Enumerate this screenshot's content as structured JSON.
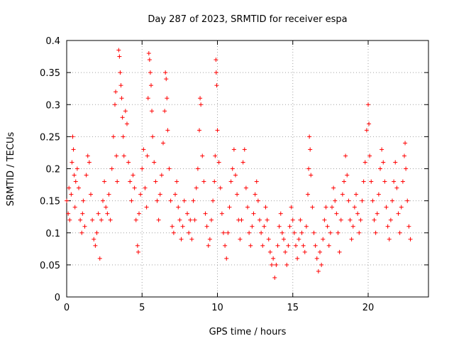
{
  "chart_data": {
    "type": "scatter",
    "title": "Day 287 of 2023, SRMTID for receiver espa",
    "xlabel": "GPS time / hours",
    "ylabel": "SRMTID / TECUs",
    "xlim": [
      0,
      24
    ],
    "ylim": [
      0,
      0.4
    ],
    "x_ticks": [
      0,
      5,
      10,
      15,
      20
    ],
    "x_tick_labels": [
      "0",
      "5",
      "10",
      "15",
      "20"
    ],
    "y_ticks": [
      0,
      0.05,
      0.1,
      0.15,
      0.2,
      0.25,
      0.3,
      0.35,
      0.4
    ],
    "y_tick_labels": [
      "0",
      "0.05",
      "0.1",
      "0.15",
      "0.2",
      "0.25",
      "0.3",
      "0.35",
      "0.4"
    ],
    "grid": true,
    "marker": "+",
    "series_color": "#ff0000",
    "series": [
      {
        "name": "SRMTID",
        "points": [
          [
            0.0,
            0.15
          ],
          [
            0.1,
            0.13
          ],
          [
            0.15,
            0.17
          ],
          [
            0.2,
            0.12
          ],
          [
            0.3,
            0.16
          ],
          [
            0.35,
            0.21
          ],
          [
            0.4,
            0.25
          ],
          [
            0.45,
            0.23
          ],
          [
            0.5,
            0.19
          ],
          [
            0.55,
            0.14
          ],
          [
            0.6,
            0.18
          ],
          [
            0.7,
            0.2
          ],
          [
            0.8,
            0.17
          ],
          [
            0.9,
            0.12
          ],
          [
            1.0,
            0.1
          ],
          [
            1.05,
            0.13
          ],
          [
            1.1,
            0.15
          ],
          [
            1.2,
            0.11
          ],
          [
            1.3,
            0.19
          ],
          [
            1.4,
            0.22
          ],
          [
            1.5,
            0.21
          ],
          [
            1.6,
            0.16
          ],
          [
            1.7,
            0.12
          ],
          [
            1.8,
            0.09
          ],
          [
            1.9,
            0.08
          ],
          [
            2.0,
            0.1
          ],
          [
            2.1,
            0.13
          ],
          [
            2.2,
            0.06
          ],
          [
            2.3,
            0.12
          ],
          [
            2.4,
            0.15
          ],
          [
            2.5,
            0.18
          ],
          [
            2.6,
            0.14
          ],
          [
            2.7,
            0.13
          ],
          [
            2.8,
            0.16
          ],
          [
            2.9,
            0.12
          ],
          [
            3.0,
            0.2
          ],
          [
            3.1,
            0.25
          ],
          [
            3.2,
            0.3
          ],
          [
            3.25,
            0.32
          ],
          [
            3.3,
            0.22
          ],
          [
            3.35,
            0.18
          ],
          [
            3.45,
            0.385
          ],
          [
            3.5,
            0.375
          ],
          [
            3.55,
            0.35
          ],
          [
            3.6,
            0.33
          ],
          [
            3.65,
            0.31
          ],
          [
            3.7,
            0.28
          ],
          [
            3.75,
            0.25
          ],
          [
            3.8,
            0.22
          ],
          [
            3.9,
            0.29
          ],
          [
            4.0,
            0.27
          ],
          [
            4.1,
            0.21
          ],
          [
            4.2,
            0.18
          ],
          [
            4.3,
            0.15
          ],
          [
            4.4,
            0.19
          ],
          [
            4.5,
            0.17
          ],
          [
            4.6,
            0.12
          ],
          [
            4.7,
            0.08
          ],
          [
            4.75,
            0.07
          ],
          [
            4.8,
            0.13
          ],
          [
            4.9,
            0.16
          ],
          [
            5.0,
            0.2
          ],
          [
            5.1,
            0.23
          ],
          [
            5.2,
            0.17
          ],
          [
            5.3,
            0.14
          ],
          [
            5.35,
            0.22
          ],
          [
            5.4,
            0.31
          ],
          [
            5.45,
            0.38
          ],
          [
            5.5,
            0.37
          ],
          [
            5.55,
            0.35
          ],
          [
            5.6,
            0.33
          ],
          [
            5.65,
            0.29
          ],
          [
            5.7,
            0.25
          ],
          [
            5.8,
            0.21
          ],
          [
            5.9,
            0.18
          ],
          [
            6.0,
            0.15
          ],
          [
            6.1,
            0.12
          ],
          [
            6.2,
            0.16
          ],
          [
            6.3,
            0.19
          ],
          [
            6.4,
            0.24
          ],
          [
            6.5,
            0.29
          ],
          [
            6.55,
            0.35
          ],
          [
            6.6,
            0.34
          ],
          [
            6.65,
            0.31
          ],
          [
            6.7,
            0.26
          ],
          [
            6.8,
            0.2
          ],
          [
            6.9,
            0.15
          ],
          [
            7.0,
            0.11
          ],
          [
            7.1,
            0.1
          ],
          [
            7.2,
            0.16
          ],
          [
            7.3,
            0.18
          ],
          [
            7.4,
            0.14
          ],
          [
            7.5,
            0.12
          ],
          [
            7.6,
            0.09
          ],
          [
            7.7,
            0.11
          ],
          [
            7.8,
            0.15
          ],
          [
            8.0,
            0.13
          ],
          [
            8.1,
            0.1
          ],
          [
            8.2,
            0.12
          ],
          [
            8.3,
            0.09
          ],
          [
            8.4,
            0.15
          ],
          [
            8.5,
            0.12
          ],
          [
            8.6,
            0.17
          ],
          [
            8.7,
            0.2
          ],
          [
            8.8,
            0.26
          ],
          [
            8.85,
            0.31
          ],
          [
            8.9,
            0.3
          ],
          [
            9.0,
            0.22
          ],
          [
            9.1,
            0.18
          ],
          [
            9.2,
            0.13
          ],
          [
            9.3,
            0.11
          ],
          [
            9.4,
            0.08
          ],
          [
            9.5,
            0.09
          ],
          [
            9.6,
            0.12
          ],
          [
            9.7,
            0.15
          ],
          [
            9.8,
            0.18
          ],
          [
            9.85,
            0.22
          ],
          [
            9.9,
            0.37
          ],
          [
            9.92,
            0.35
          ],
          [
            9.95,
            0.33
          ],
          [
            10.0,
            0.26
          ],
          [
            10.1,
            0.21
          ],
          [
            10.2,
            0.17
          ],
          [
            10.3,
            0.13
          ],
          [
            10.4,
            0.1
          ],
          [
            10.5,
            0.08
          ],
          [
            10.6,
            0.06
          ],
          [
            10.7,
            0.1
          ],
          [
            10.8,
            0.14
          ],
          [
            10.9,
            0.18
          ],
          [
            11.0,
            0.2
          ],
          [
            11.1,
            0.23
          ],
          [
            11.2,
            0.19
          ],
          [
            11.3,
            0.16
          ],
          [
            11.4,
            0.12
          ],
          [
            11.5,
            0.09
          ],
          [
            11.6,
            0.12
          ],
          [
            11.7,
            0.21
          ],
          [
            11.8,
            0.23
          ],
          [
            11.9,
            0.17
          ],
          [
            12.0,
            0.14
          ],
          [
            12.1,
            0.1
          ],
          [
            12.2,
            0.08
          ],
          [
            12.3,
            0.11
          ],
          [
            12.4,
            0.13
          ],
          [
            12.5,
            0.16
          ],
          [
            12.6,
            0.18
          ],
          [
            12.7,
            0.15
          ],
          [
            12.8,
            0.12
          ],
          [
            12.9,
            0.1
          ],
          [
            13.0,
            0.08
          ],
          [
            13.1,
            0.11
          ],
          [
            13.2,
            0.14
          ],
          [
            13.3,
            0.12
          ],
          [
            13.4,
            0.09
          ],
          [
            13.5,
            0.07
          ],
          [
            13.6,
            0.05
          ],
          [
            13.7,
            0.06
          ],
          [
            13.8,
            0.03
          ],
          [
            13.9,
            0.05
          ],
          [
            14.0,
            0.08
          ],
          [
            14.1,
            0.11
          ],
          [
            14.2,
            0.13
          ],
          [
            14.3,
            0.1
          ],
          [
            14.4,
            0.09
          ],
          [
            14.5,
            0.07
          ],
          [
            14.6,
            0.05
          ],
          [
            14.7,
            0.08
          ],
          [
            14.8,
            0.11
          ],
          [
            14.9,
            0.14
          ],
          [
            15.0,
            0.12
          ],
          [
            15.1,
            0.1
          ],
          [
            15.2,
            0.08
          ],
          [
            15.3,
            0.06
          ],
          [
            15.4,
            0.09
          ],
          [
            15.5,
            0.12
          ],
          [
            15.6,
            0.1
          ],
          [
            15.7,
            0.08
          ],
          [
            15.8,
            0.07
          ],
          [
            15.9,
            0.11
          ],
          [
            16.0,
            0.16
          ],
          [
            16.05,
            0.2
          ],
          [
            16.1,
            0.25
          ],
          [
            16.15,
            0.23
          ],
          [
            16.2,
            0.19
          ],
          [
            16.3,
            0.14
          ],
          [
            16.4,
            0.1
          ],
          [
            16.5,
            0.08
          ],
          [
            16.6,
            0.06
          ],
          [
            16.7,
            0.04
          ],
          [
            16.8,
            0.07
          ],
          [
            16.9,
            0.05
          ],
          [
            17.0,
            0.09
          ],
          [
            17.1,
            0.12
          ],
          [
            17.2,
            0.14
          ],
          [
            17.3,
            0.11
          ],
          [
            17.4,
            0.08
          ],
          [
            17.5,
            0.1
          ],
          [
            17.6,
            0.14
          ],
          [
            17.7,
            0.17
          ],
          [
            17.8,
            0.15
          ],
          [
            17.9,
            0.13
          ],
          [
            18.0,
            0.1
          ],
          [
            18.1,
            0.07
          ],
          [
            18.2,
            0.12
          ],
          [
            18.3,
            0.16
          ],
          [
            18.4,
            0.18
          ],
          [
            18.5,
            0.22
          ],
          [
            18.6,
            0.19
          ],
          [
            18.7,
            0.15
          ],
          [
            18.8,
            0.12
          ],
          [
            18.9,
            0.09
          ],
          [
            19.0,
            0.11
          ],
          [
            19.1,
            0.14
          ],
          [
            19.2,
            0.16
          ],
          [
            19.3,
            0.13
          ],
          [
            19.4,
            0.1
          ],
          [
            19.5,
            0.12
          ],
          [
            19.6,
            0.15
          ],
          [
            19.7,
            0.18
          ],
          [
            19.8,
            0.21
          ],
          [
            19.9,
            0.26
          ],
          [
            20.0,
            0.3
          ],
          [
            20.05,
            0.27
          ],
          [
            20.1,
            0.22
          ],
          [
            20.2,
            0.18
          ],
          [
            20.3,
            0.15
          ],
          [
            20.4,
            0.12
          ],
          [
            20.5,
            0.1
          ],
          [
            20.6,
            0.13
          ],
          [
            20.7,
            0.16
          ],
          [
            20.8,
            0.2
          ],
          [
            20.9,
            0.23
          ],
          [
            21.0,
            0.21
          ],
          [
            21.1,
            0.18
          ],
          [
            21.2,
            0.14
          ],
          [
            21.3,
            0.11
          ],
          [
            21.4,
            0.09
          ],
          [
            21.5,
            0.12
          ],
          [
            21.6,
            0.15
          ],
          [
            21.7,
            0.18
          ],
          [
            21.8,
            0.21
          ],
          [
            21.9,
            0.17
          ],
          [
            22.0,
            0.13
          ],
          [
            22.1,
            0.1
          ],
          [
            22.2,
            0.14
          ],
          [
            22.3,
            0.18
          ],
          [
            22.4,
            0.22
          ],
          [
            22.45,
            0.24
          ],
          [
            22.5,
            0.2
          ],
          [
            22.6,
            0.15
          ],
          [
            22.7,
            0.11
          ],
          [
            22.8,
            0.09
          ]
        ]
      }
    ]
  }
}
